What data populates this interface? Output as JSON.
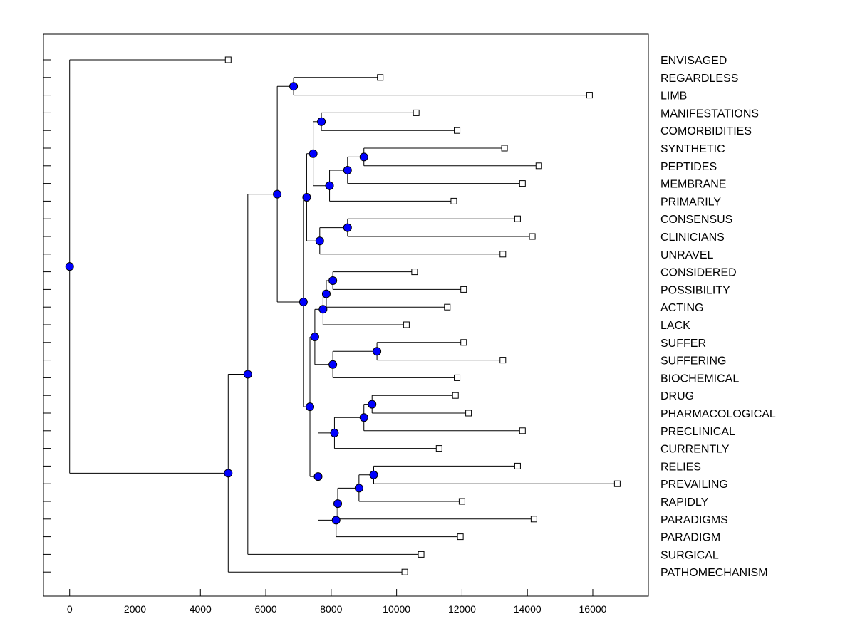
{
  "chart_data": {
    "type": "dendrogram",
    "title": "",
    "xlabel": "",
    "ylabel": "",
    "xlim": [
      -800,
      17700
    ],
    "x_ticks": [
      0,
      2000,
      4000,
      6000,
      8000,
      10000,
      12000,
      14000,
      16000
    ],
    "x_tick_labels": [
      "0",
      "2000",
      "4000",
      "6000",
      "8000",
      "10000",
      "12000",
      "14000",
      "16000"
    ],
    "colors": {
      "node_fill": "#0000ff",
      "leaf_fill": "#ffffff",
      "line": "#000000"
    },
    "leaves": [
      {
        "label": "ENVISAGED",
        "value": 4850
      },
      {
        "label": "REGARDLESS",
        "value": 9500
      },
      {
        "label": "LIMB",
        "value": 15900
      },
      {
        "label": "MANIFESTATIONS",
        "value": 10600
      },
      {
        "label": "COMORBIDITIES",
        "value": 11850
      },
      {
        "label": "SYNTHETIC",
        "value": 13300
      },
      {
        "label": "PEPTIDES",
        "value": 14350
      },
      {
        "label": "MEMBRANE",
        "value": 13850
      },
      {
        "label": "PRIMARILY",
        "value": 11750
      },
      {
        "label": "CONSENSUS",
        "value": 13700
      },
      {
        "label": "CLINICIANS",
        "value": 14150
      },
      {
        "label": "UNRAVEL",
        "value": 13250
      },
      {
        "label": "CONSIDERED",
        "value": 10550
      },
      {
        "label": "POSSIBILITY",
        "value": 12050
      },
      {
        "label": "ACTING",
        "value": 11550
      },
      {
        "label": "LACK",
        "value": 10300
      },
      {
        "label": "SUFFER",
        "value": 12050
      },
      {
        "label": "SUFFERING",
        "value": 13250
      },
      {
        "label": "BIOCHEMICAL",
        "value": 11850
      },
      {
        "label": "DRUG",
        "value": 11800
      },
      {
        "label": "PHARMACOLOGICAL",
        "value": 12200
      },
      {
        "label": "PRECLINICAL",
        "value": 13850
      },
      {
        "label": "CURRENTLY",
        "value": 11300
      },
      {
        "label": "RELIES",
        "value": 13700
      },
      {
        "label": "PREVAILING",
        "value": 16750
      },
      {
        "label": "RAPIDLY",
        "value": 12000
      },
      {
        "label": "PARADIGMS",
        "value": 14200
      },
      {
        "label": "PARADIGM",
        "value": 11950
      },
      {
        "label": "SURGICAL",
        "value": 10750
      },
      {
        "label": "PATHOMECHANISM",
        "value": 10250
      }
    ],
    "nodes": [
      {
        "id": "n1",
        "value": 6850,
        "children": [
          "L1",
          "L2"
        ]
      },
      {
        "id": "n2",
        "value": 7700,
        "children": [
          "L3",
          "L4"
        ]
      },
      {
        "id": "n3",
        "value": 9000,
        "children": [
          "L5",
          "L6"
        ]
      },
      {
        "id": "n4",
        "value": 8500,
        "children": [
          "n3",
          "L7"
        ]
      },
      {
        "id": "n5",
        "value": 7950,
        "children": [
          "n4",
          "L8"
        ]
      },
      {
        "id": "n6",
        "value": 7450,
        "children": [
          "n2",
          "n5"
        ]
      },
      {
        "id": "n7",
        "value": 8500,
        "children": [
          "L9",
          "L10"
        ]
      },
      {
        "id": "n8",
        "value": 7650,
        "children": [
          "n7",
          "L11"
        ]
      },
      {
        "id": "n9",
        "value": 7250,
        "children": [
          "n6",
          "n8"
        ]
      },
      {
        "id": "n10",
        "value": 8050,
        "children": [
          "L12",
          "L13"
        ]
      },
      {
        "id": "n11",
        "value": 7850,
        "children": [
          "n10",
          "L14"
        ]
      },
      {
        "id": "n12",
        "value": 7750,
        "children": [
          "n11",
          "L15"
        ]
      },
      {
        "id": "n13",
        "value": 9400,
        "children": [
          "L16",
          "L17"
        ]
      },
      {
        "id": "n14",
        "value": 8050,
        "children": [
          "n13",
          "L18"
        ]
      },
      {
        "id": "n15",
        "value": 7500,
        "children": [
          "n12",
          "n14"
        ]
      },
      {
        "id": "n16",
        "value": 9250,
        "children": [
          "L19",
          "L20"
        ]
      },
      {
        "id": "n17",
        "value": 9000,
        "children": [
          "n16",
          "L21"
        ]
      },
      {
        "id": "n18",
        "value": 8100,
        "children": [
          "n17",
          "L22"
        ]
      },
      {
        "id": "n19",
        "value": 9300,
        "children": [
          "L23",
          "L24"
        ]
      },
      {
        "id": "n20",
        "value": 8850,
        "children": [
          "n19",
          "L25"
        ]
      },
      {
        "id": "n21",
        "value": 8200,
        "children": [
          "n20",
          "L26"
        ]
      },
      {
        "id": "n22",
        "value": 8150,
        "children": [
          "n21",
          "L27"
        ]
      },
      {
        "id": "n23",
        "value": 7600,
        "children": [
          "n18",
          "n22"
        ]
      },
      {
        "id": "n24",
        "value": 7350,
        "children": [
          "n15",
          "n23"
        ]
      },
      {
        "id": "n25",
        "value": 7150,
        "children": [
          "n9",
          "n24"
        ]
      },
      {
        "id": "n26",
        "value": 6350,
        "children": [
          "n1",
          "n25"
        ]
      },
      {
        "id": "n27",
        "value": 5450,
        "children": [
          "n26",
          "L28"
        ]
      },
      {
        "id": "n28",
        "value": 4850,
        "children": [
          "n27",
          "L29"
        ]
      },
      {
        "id": "n29",
        "value": 0,
        "children": [
          "L0",
          "n28"
        ]
      }
    ]
  }
}
